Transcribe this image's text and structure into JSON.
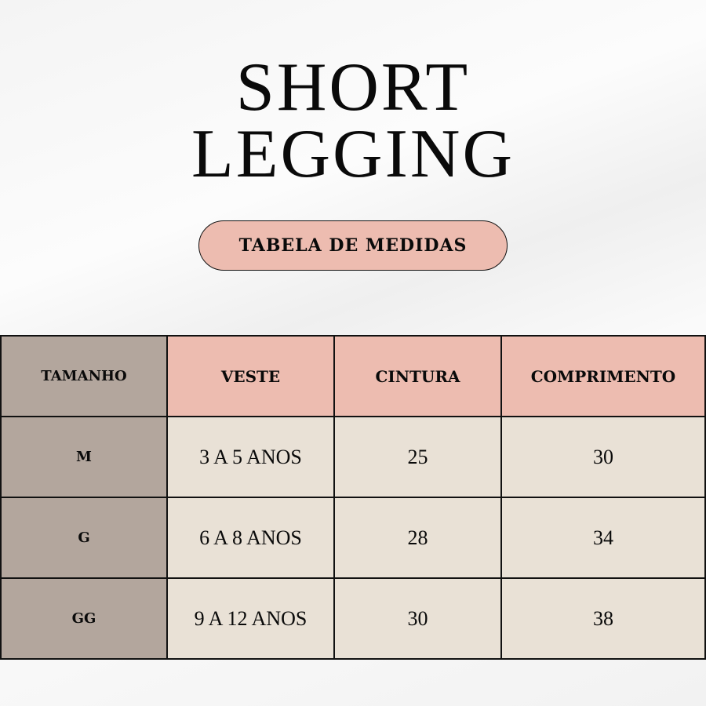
{
  "title": {
    "line1": "SHORT",
    "line2": "LEGGING"
  },
  "subtitle": "TABELA DE MEDIDAS",
  "table": {
    "headers": [
      "TAMANHO",
      "VESTE",
      "CINTURA",
      "COMPRIMENTO"
    ],
    "rows": [
      [
        "M",
        "3 A 5 ANOS",
        "25",
        "30"
      ],
      [
        "G",
        "6 A 8 ANOS",
        "28",
        "34"
      ],
      [
        "GG",
        "9 A 12 ANOS",
        "30",
        "38"
      ]
    ]
  },
  "colors": {
    "size_column": "#b3a69d",
    "header": "#edbcb0",
    "cells": "#e9e1d6"
  }
}
